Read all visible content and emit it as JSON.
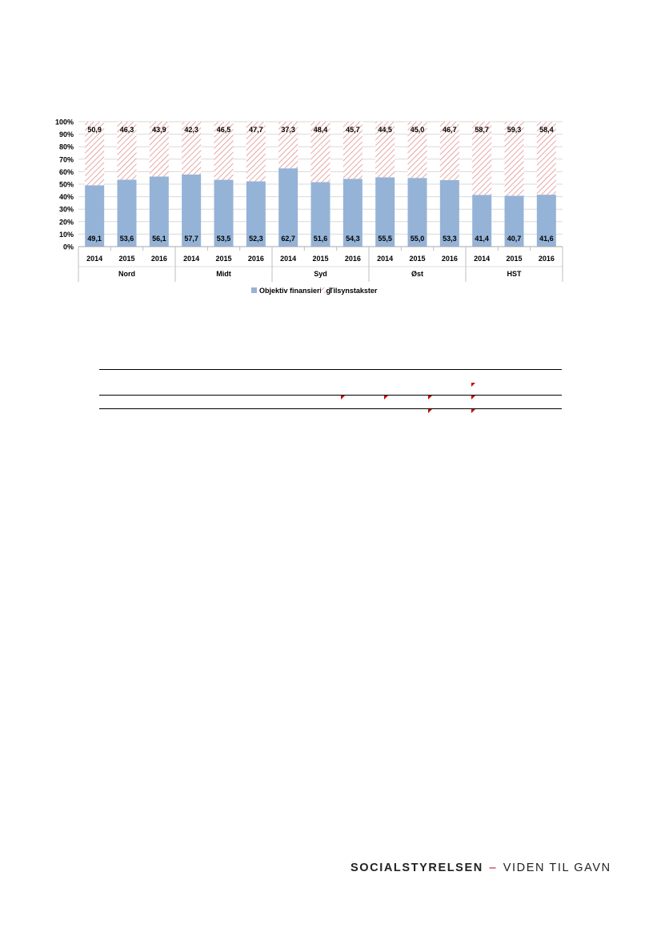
{
  "chart_data": {
    "type": "bar",
    "stacked": true,
    "normalized": true,
    "groups": [
      "Nord",
      "Midt",
      "Syd",
      "Øst",
      "HST"
    ],
    "years": [
      "2014",
      "2015",
      "2016"
    ],
    "series": [
      {
        "name": "Objektiv finansiering",
        "color": "#95b3d7",
        "values": [
          49.1,
          53.6,
          56.1,
          57.7,
          53.5,
          52.3,
          62.7,
          51.6,
          54.3,
          55.5,
          55.0,
          53.3,
          41.4,
          40.7,
          41.6
        ],
        "labels": [
          "49,1",
          "53,6",
          "56,1",
          "57,7",
          "53,5",
          "52,3",
          "62,7",
          "51,6",
          "54,3",
          "55,5",
          "55,0",
          "53,3",
          "41,4",
          "40,7",
          "41,6"
        ]
      },
      {
        "name": "Tilsynstakster",
        "color": "#d9a0a0",
        "pattern": "diagonal-hatch",
        "values": [
          50.9,
          46.3,
          43.9,
          42.3,
          46.5,
          47.7,
          37.3,
          48.4,
          45.7,
          44.5,
          45.0,
          46.7,
          58.7,
          59.3,
          58.4
        ],
        "labels": [
          "50,9",
          "46,3",
          "43,9",
          "42,3",
          "46,5",
          "47,7",
          "37,3",
          "48,4",
          "45,7",
          "44,5",
          "45,0",
          "46,7",
          "58,7",
          "59,3",
          "58,4"
        ]
      }
    ],
    "yticks": [
      "0%",
      "10%",
      "20%",
      "30%",
      "40%",
      "50%",
      "60%",
      "70%",
      "80%",
      "90%",
      "100%"
    ],
    "ylim": [
      0,
      100
    ],
    "grid": true,
    "legend_position": "bottom"
  },
  "footer": {
    "brand": "SOCIALSTYRELSEN",
    "separator": "–",
    "tagline": "VIDEN TIL GAVN"
  }
}
